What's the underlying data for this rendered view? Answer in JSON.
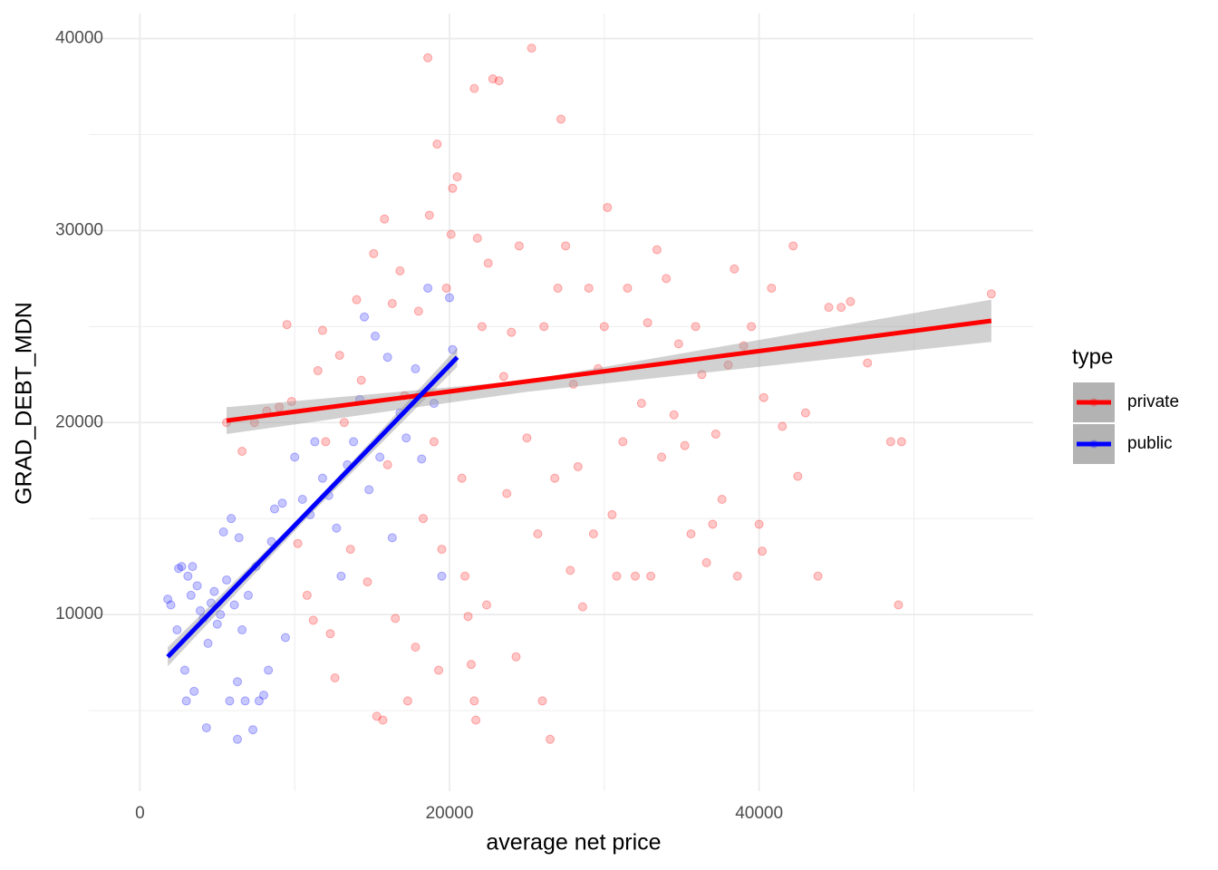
{
  "chart_data": {
    "type": "scatter",
    "x_label": "average net price",
    "y_label": "GRAD_DEBT_MDN",
    "legend_title": "type",
    "legend": "right",
    "grid": true,
    "xlim": [
      -3300,
      57700
    ],
    "ylim": [
      800,
      41300
    ],
    "xticks": [
      0,
      20000,
      40000
    ],
    "yticks": [
      10000,
      20000,
      30000,
      40000
    ],
    "xminor": [
      10000,
      30000,
      50000
    ],
    "yminor": [
      5000,
      15000,
      25000,
      35000
    ],
    "series": [
      {
        "name": "private",
        "color": "#ff0000",
        "x": [
          5600,
          6600,
          7400,
          8200,
          9000,
          9500,
          9800,
          10200,
          10800,
          11200,
          11500,
          11800,
          12000,
          12300,
          12600,
          12900,
          13200,
          13600,
          14000,
          14300,
          14700,
          15100,
          15300,
          15700,
          15800,
          16000,
          16300,
          16500,
          16800,
          17100,
          17300,
          17800,
          18000,
          18300,
          18600,
          18700,
          19000,
          19200,
          19300,
          19500,
          19800,
          20100,
          20200,
          20500,
          20800,
          21000,
          21200,
          21400,
          21600,
          21600,
          21700,
          21800,
          22100,
          22400,
          22500,
          22800,
          23200,
          23500,
          23700,
          24000,
          24300,
          24500,
          25000,
          25300,
          25700,
          26000,
          26100,
          26500,
          26800,
          27000,
          27200,
          27500,
          27800,
          28000,
          28300,
          28600,
          29000,
          29300,
          29600,
          30000,
          30200,
          30500,
          30800,
          31200,
          31500,
          32000,
          32400,
          32800,
          33000,
          33400,
          33700,
          34000,
          34500,
          34800,
          35200,
          35600,
          35900,
          36300,
          36600,
          37000,
          37200,
          37600,
          38000,
          38400,
          38600,
          39000,
          39500,
          40000,
          40200,
          40300,
          40800,
          41500,
          42200,
          42500,
          43000,
          43800,
          44500,
          45300,
          45900,
          47000,
          48500,
          49000,
          49200,
          55000
        ],
        "values": [
          20000,
          18500,
          20000,
          20600,
          20800,
          25100,
          21100,
          13700,
          11000,
          9700,
          22700,
          24800,
          19000,
          9000,
          6700,
          23500,
          20000,
          13400,
          26400,
          22200,
          11700,
          28800,
          4700,
          4500,
          30600,
          17800,
          26200,
          9800,
          27900,
          21400,
          5500,
          8300,
          25800,
          15000,
          39000,
          30800,
          19000,
          34500,
          7100,
          13400,
          27000,
          29800,
          32200,
          32800,
          17100,
          12000,
          9900,
          7400,
          37400,
          5500,
          4500,
          29600,
          25000,
          10500,
          28300,
          37900,
          37800,
          22400,
          16300,
          24700,
          7800,
          29200,
          19200,
          39500,
          14200,
          5500,
          25000,
          3500,
          17100,
          27000,
          35800,
          29200,
          12300,
          22000,
          17700,
          10400,
          27000,
          14200,
          22800,
          25000,
          31200,
          15200,
          12000,
          19000,
          27000,
          12000,
          21000,
          25200,
          12000,
          29000,
          18200,
          27500,
          20400,
          24100,
          18800,
          14200,
          25000,
          22500,
          12700,
          14700,
          19400,
          16000,
          23000,
          28000,
          12000,
          24000,
          25000,
          14700,
          13300,
          21300,
          27000,
          19800,
          29200,
          17200,
          20500,
          12000,
          26000,
          26000,
          26300,
          23100,
          19000,
          10500,
          19000,
          26700
        ],
        "fit": {
          "x": [
            5600,
            55000
          ],
          "values": [
            20100,
            25300
          ]
        },
        "ribbon": {
          "x": [
            5600,
            25000,
            55000
          ],
          "lower": [
            19400,
            21600,
            24200
          ],
          "upper": [
            20800,
            22200,
            26400
          ]
        }
      },
      {
        "name": "public",
        "color": "#0000ff",
        "x": [
          1800,
          2000,
          2400,
          2500,
          2700,
          2900,
          3000,
          3100,
          3300,
          3400,
          3500,
          3700,
          3900,
          4100,
          4300,
          4400,
          4600,
          4800,
          5000,
          5200,
          5400,
          5600,
          5800,
          5900,
          6100,
          6300,
          6300,
          6400,
          6600,
          6800,
          7000,
          7300,
          7500,
          7700,
          8000,
          8300,
          8500,
          8700,
          9200,
          9400,
          10000,
          10500,
          11000,
          11300,
          11800,
          12200,
          12700,
          13000,
          13400,
          13800,
          14200,
          14500,
          14800,
          15200,
          15500,
          16000,
          16300,
          16800,
          17200,
          17800,
          18200,
          18600,
          19000,
          19500,
          20000,
          20200
        ],
        "values": [
          10800,
          10500,
          9200,
          12400,
          12500,
          7100,
          5500,
          12000,
          11000,
          12500,
          6000,
          11500,
          10200,
          9800,
          4100,
          8500,
          10600,
          11200,
          9500,
          10000,
          14300,
          11800,
          5500,
          15000,
          10500,
          6500,
          3500,
          14000,
          9200,
          5500,
          11000,
          4000,
          12500,
          5500,
          5800,
          7100,
          13800,
          15500,
          15800,
          8800,
          18200,
          16000,
          15200,
          19000,
          17100,
          16200,
          14500,
          12000,
          17800,
          19000,
          21200,
          25500,
          16500,
          24500,
          18200,
          23400,
          14000,
          20500,
          19200,
          22800,
          18100,
          27000,
          21000,
          12000,
          26500,
          23800
        ],
        "fit": {
          "x": [
            1800,
            20500
          ],
          "values": [
            7800,
            23400
          ]
        },
        "ribbon": {
          "x": [
            1800,
            11000,
            20500
          ],
          "lower": [
            7300,
            15200,
            22900
          ],
          "upper": [
            8300,
            15600,
            23900
          ]
        }
      }
    ]
  }
}
